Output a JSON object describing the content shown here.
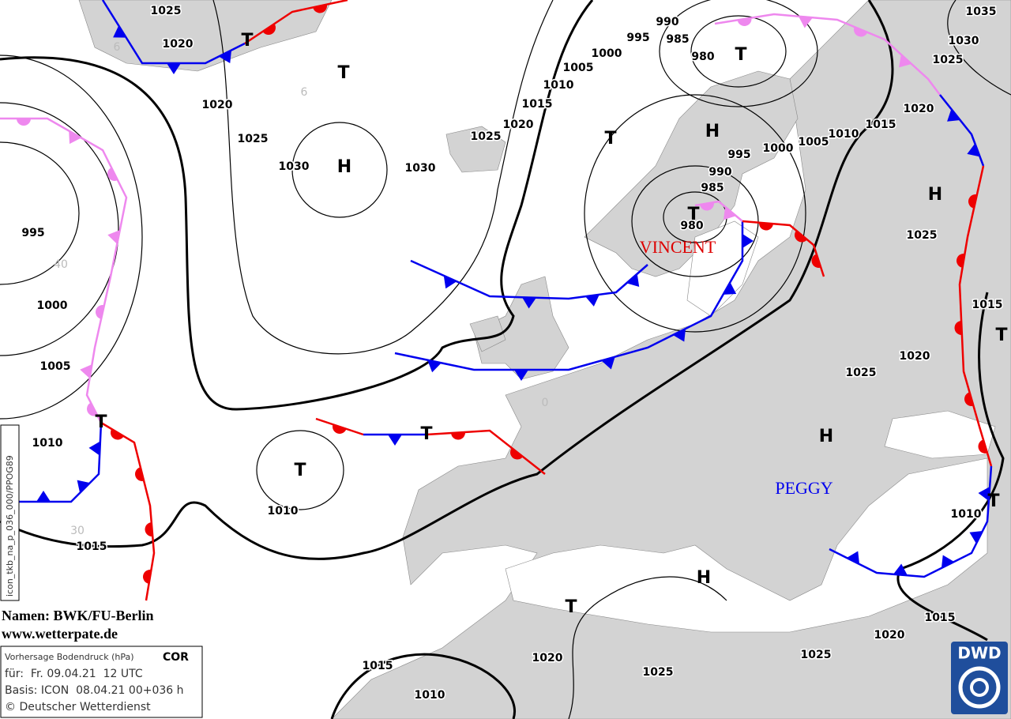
{
  "map": {
    "isobar_labels": [
      1025,
      1020,
      1020,
      1025,
      1030,
      1030,
      1025,
      1020,
      1015,
      1010,
      1005,
      1000,
      995,
      990,
      985,
      980,
      995,
      990,
      985,
      980,
      1000,
      1005,
      1010,
      1015,
      1020,
      1025,
      1030,
      1035,
      1025,
      1015,
      1020,
      1025,
      1010,
      1015,
      1020,
      1025,
      1025,
      1020,
      1015,
      1010,
      1010,
      1015,
      1010,
      1005,
      1000,
      995
    ],
    "pressure_centers": [
      "T",
      "T",
      "H",
      "T",
      "H",
      "T",
      "T",
      "H",
      "T",
      "H",
      "T",
      "T",
      "T",
      "H",
      "T",
      "T"
    ],
    "storm_names": [
      "VINCENT",
      "PEGGY"
    ],
    "grid_labels": [
      "6",
      "6",
      "40",
      "30",
      "0"
    ]
  },
  "credits": {
    "names": "Namen: BWK/FU-Berlin",
    "website": "www.wetterpate.de"
  },
  "info_box": {
    "title": "Vorhersage Bodendruck (hPa)",
    "flag": "COR",
    "valid": "für:  Fr. 09.04.21  12 UTC",
    "basis": "Basis: ICON  08.04.21 00+036 h",
    "copyright": "© Deutscher Wetterdienst"
  },
  "product_code": "icon_tkb_na_p_036_000/PPOG89",
  "logo": "DWD"
}
